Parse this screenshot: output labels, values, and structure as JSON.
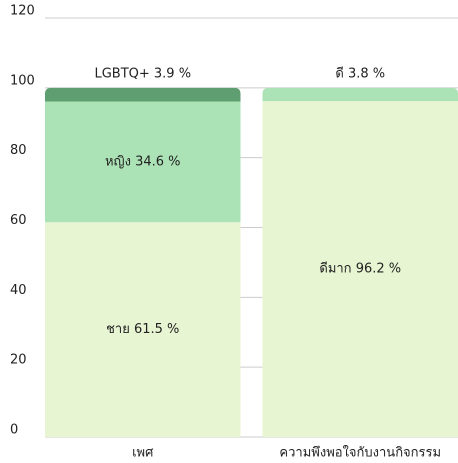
{
  "chart_data": {
    "type": "stacked_bar",
    "categories": [
      "เพศ",
      "ความพึงพอใจกับงานกิจกรรม"
    ],
    "series": [
      {
        "color": "#e7f5d2",
        "values": [
          61.5,
          null
        ],
        "value_labels": [
          "ชาย 61.5 %",
          null
        ]
      },
      {
        "color": "#ace3b6",
        "values": [
          34.6,
          null
        ],
        "value_labels": [
          "หญิง 34.6 %",
          null
        ]
      },
      {
        "color": "#5e9e70",
        "values": [
          3.9,
          null
        ],
        "value_labels": [
          "LGBTQ+ 3.9 %",
          null
        ]
      },
      {
        "color": "#e7f5d2",
        "values": [
          null,
          96.2
        ],
        "value_labels": [
          null,
          "ดีมาก 96.2 %"
        ]
      },
      {
        "color": "#ace3b6",
        "values": [
          null,
          3.8
        ],
        "value_labels": [
          null,
          "ดี 3.8 %"
        ]
      }
    ],
    "ylim": [
      0,
      120
    ],
    "yticks": [
      0,
      20,
      40,
      60,
      80,
      100,
      120
    ],
    "grid": true
  }
}
